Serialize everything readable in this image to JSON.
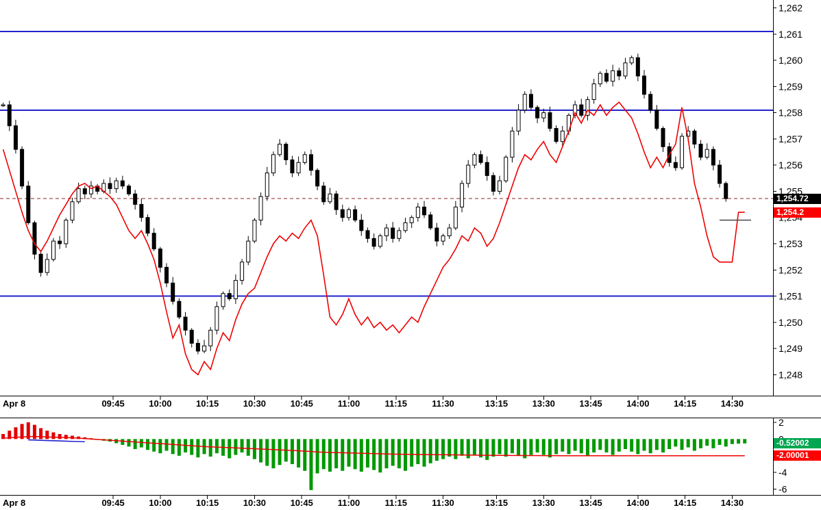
{
  "chart_data": {
    "type": "candlestick",
    "title": "",
    "date_label": "Apr 8",
    "num_slots": 123,
    "x_ticks": [
      {
        "label": "09:45",
        "index": 17.5
      },
      {
        "label": "10:00",
        "index": 25
      },
      {
        "label": "10:15",
        "index": 32.5
      },
      {
        "label": "10:30",
        "index": 40
      },
      {
        "label": "10:45",
        "index": 47.5
      },
      {
        "label": "11:00",
        "index": 55
      },
      {
        "label": "11:15",
        "index": 62.5
      },
      {
        "label": "11:30",
        "index": 70
      },
      {
        "label": "13:15",
        "index": 78.5
      },
      {
        "label": "13:30",
        "index": 86
      },
      {
        "label": "13:45",
        "index": 93.5
      },
      {
        "label": "14:00",
        "index": 101
      },
      {
        "label": "14:15",
        "index": 108.5
      },
      {
        "label": "14:30",
        "index": 116
      }
    ],
    "price_axis": {
      "ylim": [
        1247.2,
        1262.3
      ],
      "ticks": [
        1248,
        1249,
        1250,
        1251,
        1252,
        1253,
        1254,
        1255,
        1256,
        1257,
        1258,
        1259,
        1260,
        1261,
        1262
      ]
    },
    "horizontal_lines": [
      {
        "value": 1261.1,
        "color": "#2222cc"
      },
      {
        "value": 1258.1,
        "color": "#2222cc"
      },
      {
        "value": 1251.0,
        "color": "#2222cc"
      }
    ],
    "last_price_line": {
      "value": 1254.72,
      "color": "#8b2323",
      "style": "dashed"
    },
    "flat_segments": [
      {
        "value": 1253.9,
        "from_index": 114,
        "to_index": 119,
        "color": "#000000"
      }
    ],
    "price_badges": [
      {
        "label": "1,254.72",
        "price": 1254.72,
        "bg": "#000000",
        "fg": "#ffffff"
      },
      {
        "label": "1,254.2",
        "price": 1254.2,
        "bg": "#ff0000",
        "fg": "#ffffff"
      }
    ],
    "series": {
      "candles": {
        "name": "price-candles",
        "up_color": "#ffffff",
        "down_color": "#000000",
        "border_color": "#000000",
        "close": [
          1258.3,
          1257.5,
          1256.6,
          1255.2,
          1253.8,
          1252.6,
          1251.9,
          1252.4,
          1253.1,
          1253.0,
          1253.9,
          1254.6,
          1255.1,
          1254.9,
          1255.2,
          1255.0,
          1255.3,
          1255.1,
          1255.4,
          1255.2,
          1254.9,
          1254.5,
          1254.0,
          1253.4,
          1252.8,
          1252.1,
          1251.5,
          1250.8,
          1250.2,
          1249.7,
          1249.2,
          1248.9,
          1249.1,
          1249.7,
          1250.6,
          1251.1,
          1250.9,
          1251.6,
          1252.3,
          1253.1,
          1253.9,
          1254.8,
          1255.7,
          1256.4,
          1256.8,
          1256.2,
          1255.7,
          1256.1,
          1256.4,
          1255.8,
          1255.2,
          1254.6,
          1254.9,
          1254.3,
          1254.0,
          1254.3,
          1253.9,
          1253.5,
          1253.2,
          1252.9,
          1253.3,
          1253.6,
          1253.2,
          1253.5,
          1253.8,
          1254.0,
          1254.4,
          1254.1,
          1253.6,
          1253.1,
          1253.3,
          1253.6,
          1254.4,
          1255.3,
          1256.0,
          1256.4,
          1256.1,
          1255.6,
          1255.0,
          1255.4,
          1256.3,
          1257.3,
          1258.1,
          1258.7,
          1258.2,
          1257.8,
          1258.0,
          1257.4,
          1256.9,
          1257.3,
          1257.9,
          1258.3,
          1257.9,
          1258.5,
          1259.1,
          1259.5,
          1259.2,
          1259.6,
          1259.4,
          1259.9,
          1260.1,
          1259.4,
          1258.7,
          1258.1,
          1257.4,
          1256.7,
          1256.1,
          1255.9,
          1257.1,
          1257.3,
          1256.8,
          1256.3,
          1256.6,
          1256.0,
          1255.3,
          1254.72,
          null,
          null,
          null
        ]
      },
      "overlay_line": {
        "name": "comparison-price-line",
        "color": "#ee0000",
        "values": [
          1256.6,
          1255.8,
          1255.0,
          1254.2,
          1253.5,
          1253.0,
          1252.7,
          1253.1,
          1253.6,
          1254.1,
          1254.5,
          1254.9,
          1255.2,
          1255.3,
          1255.1,
          1255.2,
          1255.0,
          1254.8,
          1254.5,
          1254.0,
          1253.5,
          1253.2,
          1253.5,
          1253.0,
          1252.4,
          1251.5,
          1250.4,
          1249.4,
          1249.9,
          1248.8,
          1248.2,
          1248.0,
          1248.5,
          1248.2,
          1249.0,
          1249.6,
          1249.3,
          1250.1,
          1250.7,
          1251.1,
          1251.3,
          1251.9,
          1252.5,
          1253.0,
          1253.3,
          1253.1,
          1253.4,
          1253.2,
          1253.6,
          1253.9,
          1253.3,
          1251.8,
          1250.2,
          1249.9,
          1250.3,
          1250.9,
          1250.3,
          1249.9,
          1250.2,
          1249.8,
          1250.0,
          1249.7,
          1249.9,
          1249.6,
          1249.9,
          1250.2,
          1250.0,
          1250.6,
          1251.1,
          1251.6,
          1252.1,
          1252.4,
          1252.8,
          1253.3,
          1253.1,
          1253.6,
          1253.4,
          1252.9,
          1253.2,
          1253.8,
          1254.5,
          1255.2,
          1255.9,
          1256.4,
          1256.2,
          1256.6,
          1256.9,
          1256.4,
          1256.1,
          1256.7,
          1257.3,
          1258.0,
          1257.6,
          1258.1,
          1257.9,
          1258.3,
          1257.9,
          1258.2,
          1258.4,
          1258.1,
          1257.8,
          1257.2,
          1256.5,
          1255.9,
          1256.3,
          1255.9,
          1256.4,
          1256.8,
          1258.2,
          1257.0,
          1255.3,
          1254.4,
          1253.3,
          1252.5,
          1252.3,
          1252.3,
          1252.3,
          1254.2,
          1254.2
        ]
      }
    },
    "indicator": {
      "ylim": [
        -6.6,
        2.4
      ],
      "y_ticks": [
        2,
        0,
        -2,
        -4,
        -6
      ],
      "histogram": {
        "name": "spread-histogram",
        "pos_color": "#e00000",
        "neg_color": "#009900",
        "values": [
          0.6,
          1.0,
          1.4,
          1.8,
          2.0,
          1.7,
          1.3,
          1.0,
          0.8,
          0.6,
          0.5,
          0.4,
          0.3,
          0.2,
          0.1,
          -0.1,
          -0.2,
          -0.3,
          -0.5,
          -0.7,
          -0.9,
          -1.2,
          -1.0,
          -1.3,
          -1.5,
          -1.7,
          -1.4,
          -1.8,
          -2.0,
          -1.6,
          -1.9,
          -2.2,
          -1.8,
          -2.1,
          -1.7,
          -2.0,
          -2.3,
          -1.9,
          -1.6,
          -2.0,
          -2.4,
          -2.8,
          -3.2,
          -3.5,
          -3.1,
          -2.7,
          -3.0,
          -3.4,
          -3.8,
          -6.1,
          -4.1,
          -3.6,
          -3.9,
          -3.5,
          -3.8,
          -3.3,
          -3.6,
          -3.9,
          -3.4,
          -3.7,
          -4.0,
          -3.5,
          -3.2,
          -3.5,
          -3.8,
          -3.3,
          -3.0,
          -3.3,
          -2.9,
          -2.6,
          -2.4,
          -2.1,
          -2.4,
          -2.0,
          -2.3,
          -1.9,
          -2.2,
          -2.5,
          -2.1,
          -1.8,
          -2.1,
          -1.7,
          -2.0,
          -2.3,
          -1.9,
          -1.6,
          -1.9,
          -2.2,
          -1.8,
          -1.5,
          -1.8,
          -1.4,
          -1.7,
          -2.0,
          -1.6,
          -1.3,
          -1.6,
          -1.9,
          -1.5,
          -1.2,
          -1.5,
          -1.8,
          -1.4,
          -1.7,
          -1.3,
          -1.6,
          -1.2,
          -0.9,
          -1.3,
          -1.0,
          -1.4,
          -1.1,
          -0.8,
          -1.1,
          -0.7,
          -0.9,
          -0.6,
          -0.55,
          -0.52002
        ]
      },
      "signal_line": {
        "name": "signal-line",
        "color": "#ee0000",
        "values": [
          0.1,
          0.15,
          0.2,
          0.25,
          0.3,
          0.3,
          0.28,
          0.25,
          0.22,
          0.2,
          0.18,
          0.15,
          0.1,
          0.05,
          0.0,
          -0.05,
          -0.1,
          -0.15,
          -0.2,
          -0.25,
          -0.3,
          -0.35,
          -0.4,
          -0.45,
          -0.5,
          -0.55,
          -0.6,
          -0.65,
          -0.7,
          -0.75,
          -0.8,
          -0.85,
          -0.9,
          -0.93,
          -0.96,
          -1.0,
          -1.03,
          -1.06,
          -1.1,
          -1.13,
          -1.16,
          -1.2,
          -1.23,
          -1.26,
          -1.3,
          -1.33,
          -1.36,
          -1.4,
          -1.45,
          -1.5,
          -1.55,
          -1.58,
          -1.6,
          -1.62,
          -1.64,
          -1.66,
          -1.68,
          -1.7,
          -1.72,
          -1.74,
          -1.76,
          -1.78,
          -1.8,
          -1.81,
          -1.82,
          -1.83,
          -1.84,
          -1.85,
          -1.86,
          -1.87,
          -1.88,
          -1.89,
          -1.9,
          -1.91,
          -1.92,
          -1.93,
          -1.94,
          -1.95,
          -1.95,
          -1.96,
          -1.96,
          -1.97,
          -1.97,
          -1.98,
          -1.98,
          -1.98,
          -1.99,
          -1.99,
          -1.99,
          -2.0,
          -2.0,
          -2.0,
          -2.0,
          -2.0,
          -2.0,
          -2.0,
          -2.0,
          -2.0,
          -2.0,
          -2.0,
          -2.0,
          -2.0,
          -2.0,
          -2.0,
          -2.0,
          -2.0,
          -2.0,
          -2.0,
          -2.0,
          -2.0,
          -2.0,
          -2.0,
          -2.0,
          -2.0,
          -2.0,
          -2.0,
          -2.0,
          -2.0,
          -2.00001
        ]
      },
      "blue_segment": {
        "name": "fast-line",
        "color": "#2222cc",
        "start_index": 4,
        "values": [
          -0.1,
          -0.12,
          -0.15,
          -0.18,
          -0.2,
          -0.22,
          -0.25,
          -0.28,
          -0.3,
          -0.32
        ]
      },
      "badges": [
        {
          "label": "-0.52002",
          "value": -0.52002,
          "bg": "#00a651",
          "fg": "#ffffff"
        },
        {
          "label": "-2.00001",
          "value": -2.00001,
          "bg": "#ff0000",
          "fg": "#ffffff"
        }
      ]
    }
  }
}
